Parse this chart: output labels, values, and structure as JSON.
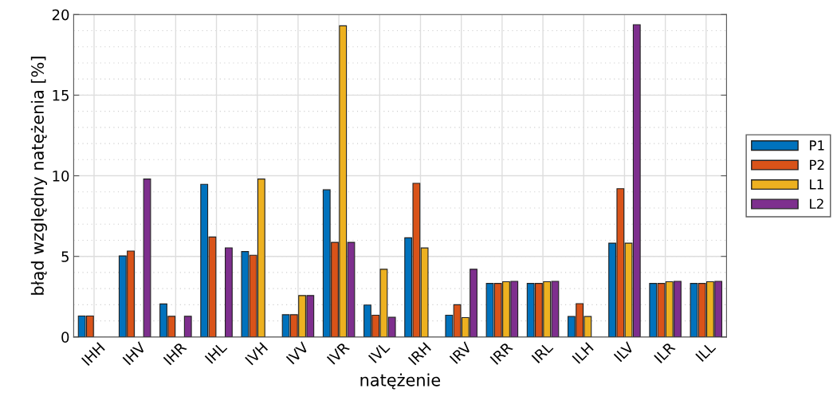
{
  "chart_data": {
    "type": "bar",
    "xlabel": "natężenie",
    "ylabel": "błąd względny natężenia [%]",
    "categories": [
      "IHH",
      "IHV",
      "IHR",
      "IHL",
      "IVH",
      "IVV",
      "IVR",
      "IVL",
      "IRH",
      "IRV",
      "IRR",
      "IRL",
      "ILH",
      "ILV",
      "ILR",
      "ILL"
    ],
    "series": [
      {
        "name": "P1",
        "color": "#0072bd",
        "values": [
          1.3,
          5.03,
          2.05,
          9.47,
          5.3,
          1.38,
          9.13,
          1.98,
          6.15,
          1.35,
          3.32,
          3.32,
          1.27,
          5.82,
          3.32,
          3.32
        ]
      },
      {
        "name": "P2",
        "color": "#d95319",
        "values": [
          1.3,
          5.33,
          1.28,
          6.2,
          5.07,
          1.38,
          5.87,
          1.35,
          9.53,
          2.0,
          3.32,
          3.32,
          2.07,
          9.2,
          3.32,
          3.32
        ]
      },
      {
        "name": "L1",
        "color": "#edb120",
        "values": [
          null,
          null,
          null,
          null,
          9.8,
          2.57,
          19.3,
          4.2,
          5.52,
          1.2,
          3.43,
          3.43,
          1.27,
          5.82,
          3.43,
          3.43
        ]
      },
      {
        "name": "L2",
        "color": "#7e2f8e",
        "values": [
          null,
          9.8,
          1.28,
          5.53,
          null,
          2.57,
          5.87,
          1.22,
          null,
          4.2,
          3.45,
          3.45,
          null,
          19.37,
          3.45,
          3.45
        ]
      }
    ],
    "ylim": [
      0,
      20
    ],
    "yticks": [
      0,
      5,
      10,
      15,
      20
    ],
    "grid": true,
    "legend": "right"
  }
}
